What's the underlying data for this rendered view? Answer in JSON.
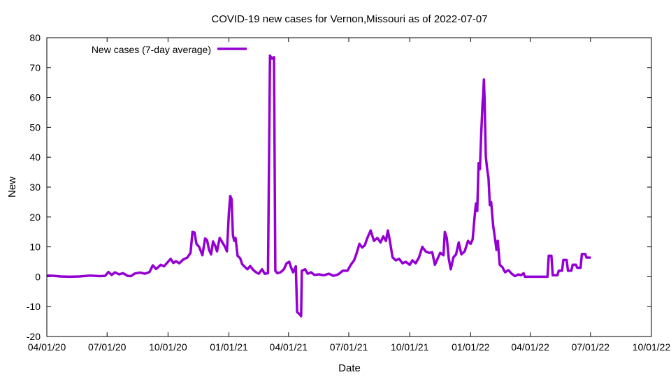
{
  "chart_data": {
    "type": "line",
    "title": "COVID-19 new cases for Vernon,Missouri as of 2022-07-07",
    "xlabel": "Date",
    "ylabel": "New",
    "ylim": [
      -20,
      80
    ],
    "yticks": [
      -20,
      -10,
      0,
      10,
      20,
      30,
      40,
      50,
      60,
      70,
      80
    ],
    "xlim": [
      "2020-04-01",
      "2022-10-01"
    ],
    "xticks": [
      {
        "date": "2020-04-01",
        "label": "04/01/20"
      },
      {
        "date": "2020-07-01",
        "label": "07/01/20"
      },
      {
        "date": "2020-10-01",
        "label": "10/01/20"
      },
      {
        "date": "2021-01-01",
        "label": "01/01/21"
      },
      {
        "date": "2021-04-01",
        "label": "04/01/21"
      },
      {
        "date": "2021-07-01",
        "label": "07/01/21"
      },
      {
        "date": "2021-10-01",
        "label": "10/01/21"
      },
      {
        "date": "2022-01-01",
        "label": "01/01/22"
      },
      {
        "date": "2022-04-01",
        "label": "04/01/22"
      },
      {
        "date": "2022-07-01",
        "label": "07/01/22"
      },
      {
        "date": "2022-10-01",
        "label": "10/01/22"
      }
    ],
    "grid": false,
    "legend_position": "top-left",
    "series": [
      {
        "name": "New cases (7-day average)",
        "color": "#9400d3",
        "points": [
          [
            "2020-04-03",
            0.4
          ],
          [
            "2020-04-12",
            0.3
          ],
          [
            "2020-04-22",
            0.1
          ],
          [
            "2020-05-05",
            0.0
          ],
          [
            "2020-05-20",
            0.1
          ],
          [
            "2020-06-05",
            0.4
          ],
          [
            "2020-06-20",
            0.2
          ],
          [
            "2020-06-28",
            0.3
          ],
          [
            "2020-07-03",
            1.6
          ],
          [
            "2020-07-08",
            0.6
          ],
          [
            "2020-07-13",
            1.5
          ],
          [
            "2020-07-19",
            0.8
          ],
          [
            "2020-07-25",
            1.2
          ],
          [
            "2020-08-01",
            0.3
          ],
          [
            "2020-08-06",
            0.2
          ],
          [
            "2020-08-12",
            1.1
          ],
          [
            "2020-08-20",
            1.4
          ],
          [
            "2020-08-27",
            1.0
          ],
          [
            "2020-09-03",
            1.6
          ],
          [
            "2020-09-08",
            3.8
          ],
          [
            "2020-09-13",
            2.6
          ],
          [
            "2020-09-20",
            4.0
          ],
          [
            "2020-09-25",
            3.5
          ],
          [
            "2020-10-01",
            5.0
          ],
          [
            "2020-10-05",
            6.0
          ],
          [
            "2020-10-09",
            4.6
          ],
          [
            "2020-10-13",
            5.2
          ],
          [
            "2020-10-18",
            4.5
          ],
          [
            "2020-10-24",
            5.8
          ],
          [
            "2020-10-30",
            6.4
          ],
          [
            "2020-11-04",
            8.0
          ],
          [
            "2020-11-07",
            15.0
          ],
          [
            "2020-11-10",
            14.8
          ],
          [
            "2020-11-13",
            11.0
          ],
          [
            "2020-11-17",
            10.0
          ],
          [
            "2020-11-22",
            7.2
          ],
          [
            "2020-11-26",
            12.8
          ],
          [
            "2020-11-29",
            12.2
          ],
          [
            "2020-12-02",
            9.0
          ],
          [
            "2020-12-05",
            7.5
          ],
          [
            "2020-12-08",
            11.8
          ],
          [
            "2020-12-11",
            10.5
          ],
          [
            "2020-12-14",
            8.5
          ],
          [
            "2020-12-18",
            13.0
          ],
          [
            "2020-12-22",
            11.5
          ],
          [
            "2020-12-26",
            10.0
          ],
          [
            "2020-12-29",
            8.5
          ],
          [
            "2021-01-01",
            21.5
          ],
          [
            "2021-01-03",
            27.0
          ],
          [
            "2021-01-05",
            26.0
          ],
          [
            "2021-01-07",
            14.0
          ],
          [
            "2021-01-09",
            12.0
          ],
          [
            "2021-01-11",
            13.0
          ],
          [
            "2021-01-14",
            7.0
          ],
          [
            "2021-01-18",
            6.2
          ],
          [
            "2021-01-21",
            4.2
          ],
          [
            "2021-01-25",
            3.3
          ],
          [
            "2021-01-29",
            2.5
          ],
          [
            "2021-02-02",
            3.6
          ],
          [
            "2021-02-07",
            2.2
          ],
          [
            "2021-02-11",
            1.5
          ],
          [
            "2021-02-15",
            1.0
          ],
          [
            "2021-02-20",
            2.5
          ],
          [
            "2021-02-24",
            1.0
          ],
          [
            "2021-03-01",
            1.2
          ],
          [
            "2021-03-04",
            74.0
          ],
          [
            "2021-03-07",
            73.0
          ],
          [
            "2021-03-10",
            73.5
          ],
          [
            "2021-03-12",
            2.0
          ],
          [
            "2021-03-15",
            1.2
          ],
          [
            "2021-03-20",
            1.5
          ],
          [
            "2021-03-25",
            2.5
          ],
          [
            "2021-03-29",
            4.5
          ],
          [
            "2021-04-02",
            5.0
          ],
          [
            "2021-04-05",
            3.0
          ],
          [
            "2021-04-08",
            1.5
          ],
          [
            "2021-04-12",
            3.5
          ],
          [
            "2021-04-14",
            -11.8
          ],
          [
            "2021-04-18",
            -12.6
          ],
          [
            "2021-04-20",
            -13.2
          ],
          [
            "2021-04-21",
            2.0
          ],
          [
            "2021-04-26",
            2.5
          ],
          [
            "2021-04-30",
            1.0
          ],
          [
            "2021-05-05",
            1.5
          ],
          [
            "2021-05-10",
            0.6
          ],
          [
            "2021-05-17",
            0.8
          ],
          [
            "2021-05-24",
            0.5
          ],
          [
            "2021-06-01",
            1.0
          ],
          [
            "2021-06-08",
            0.3
          ],
          [
            "2021-06-15",
            0.8
          ],
          [
            "2021-06-22",
            2.0
          ],
          [
            "2021-06-29",
            2.0
          ],
          [
            "2021-07-04",
            4.0
          ],
          [
            "2021-07-09",
            5.5
          ],
          [
            "2021-07-13",
            8.0
          ],
          [
            "2021-07-17",
            11.0
          ],
          [
            "2021-07-21",
            9.8
          ],
          [
            "2021-07-25",
            10.5
          ],
          [
            "2021-07-29",
            13.0
          ],
          [
            "2021-08-03",
            15.5
          ],
          [
            "2021-08-08",
            12.0
          ],
          [
            "2021-08-13",
            13.0
          ],
          [
            "2021-08-18",
            11.5
          ],
          [
            "2021-08-22",
            13.5
          ],
          [
            "2021-08-26",
            12.0
          ],
          [
            "2021-08-29",
            15.5
          ],
          [
            "2021-09-01",
            12.0
          ],
          [
            "2021-09-05",
            6.5
          ],
          [
            "2021-09-10",
            5.5
          ],
          [
            "2021-09-15",
            6.0
          ],
          [
            "2021-09-20",
            4.5
          ],
          [
            "2021-09-25",
            5.0
          ],
          [
            "2021-10-01",
            4.0
          ],
          [
            "2021-10-05",
            5.5
          ],
          [
            "2021-10-10",
            4.5
          ],
          [
            "2021-10-15",
            6.5
          ],
          [
            "2021-10-20",
            10.0
          ],
          [
            "2021-10-25",
            8.5
          ],
          [
            "2021-10-30",
            8.0
          ],
          [
            "2021-11-04",
            8.2
          ],
          [
            "2021-11-08",
            4.0
          ],
          [
            "2021-11-12",
            6.0
          ],
          [
            "2021-11-16",
            8.0
          ],
          [
            "2021-11-21",
            7.2
          ],
          [
            "2021-11-23",
            15.0
          ],
          [
            "2021-11-26",
            13.0
          ],
          [
            "2021-11-29",
            6.0
          ],
          [
            "2021-12-02",
            2.5
          ],
          [
            "2021-12-06",
            6.5
          ],
          [
            "2021-12-10",
            7.5
          ],
          [
            "2021-12-14",
            11.5
          ],
          [
            "2021-12-18",
            7.5
          ],
          [
            "2021-12-23",
            8.5
          ],
          [
            "2021-12-28",
            12.0
          ],
          [
            "2022-01-01",
            11.0
          ],
          [
            "2022-01-04",
            12.5
          ],
          [
            "2022-01-07",
            20.0
          ],
          [
            "2022-01-09",
            24.5
          ],
          [
            "2022-01-11",
            22.0
          ],
          [
            "2022-01-13",
            38.0
          ],
          [
            "2022-01-15",
            36.0
          ],
          [
            "2022-01-17",
            48.0
          ],
          [
            "2022-01-19",
            58.0
          ],
          [
            "2022-01-20",
            61.0
          ],
          [
            "2022-01-21",
            66.0
          ],
          [
            "2022-01-22",
            60.0
          ],
          [
            "2022-01-24",
            40.0
          ],
          [
            "2022-01-26",
            36.0
          ],
          [
            "2022-01-28",
            33.0
          ],
          [
            "2022-01-30",
            24.0
          ],
          [
            "2022-02-01",
            25.0
          ],
          [
            "2022-02-04",
            17.0
          ],
          [
            "2022-02-06",
            14.0
          ],
          [
            "2022-02-09",
            9.0
          ],
          [
            "2022-02-11",
            12.0
          ],
          [
            "2022-02-14",
            4.0
          ],
          [
            "2022-02-18",
            3.2
          ],
          [
            "2022-02-22",
            1.5
          ],
          [
            "2022-02-27",
            2.2
          ],
          [
            "2022-03-04",
            1.0
          ],
          [
            "2022-03-09",
            0.2
          ],
          [
            "2022-03-14",
            0.8
          ],
          [
            "2022-03-18",
            0.5
          ],
          [
            "2022-03-22",
            1.2
          ],
          [
            "2022-03-24",
            0.0
          ],
          [
            "2022-04-01",
            0.0
          ],
          [
            "2022-04-15",
            0.0
          ],
          [
            "2022-04-27",
            0.0
          ],
          [
            "2022-04-29",
            7.0
          ],
          [
            "2022-05-03",
            7.0
          ],
          [
            "2022-05-05",
            0.5
          ],
          [
            "2022-05-12",
            0.5
          ],
          [
            "2022-05-14",
            2.0
          ],
          [
            "2022-05-19",
            2.0
          ],
          [
            "2022-05-21",
            5.6
          ],
          [
            "2022-05-26",
            5.6
          ],
          [
            "2022-05-28",
            2.0
          ],
          [
            "2022-06-02",
            2.0
          ],
          [
            "2022-06-04",
            4.0
          ],
          [
            "2022-06-09",
            4.0
          ],
          [
            "2022-06-11",
            3.0
          ],
          [
            "2022-06-16",
            3.0
          ],
          [
            "2022-06-18",
            7.6
          ],
          [
            "2022-06-23",
            7.6
          ],
          [
            "2022-06-25",
            6.4
          ],
          [
            "2022-06-30",
            6.4
          ]
        ]
      }
    ]
  }
}
